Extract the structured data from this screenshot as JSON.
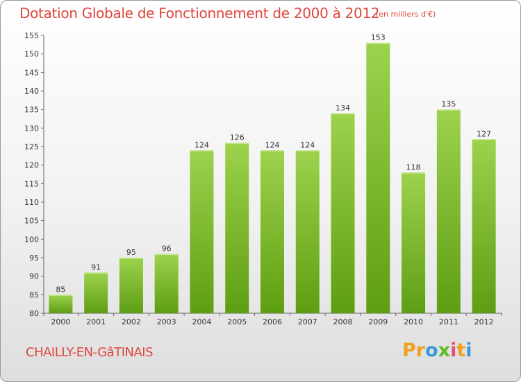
{
  "header": {
    "title": "Dotation Globale de Fonctionnement de 2000 à 2012",
    "unit": "(en milliers d'€)"
  },
  "footer": {
    "commune": "CHAILLY-EN-GâTINAIS",
    "logo_letters": [
      "P",
      "r",
      "o",
      "x",
      "i",
      "t",
      "i"
    ],
    "logo_colors": [
      "#f0a020",
      "#f0a020",
      "#3a9ad9",
      "#5aba2a",
      "#e84c6f",
      "#f0a020",
      "#3a9ad9"
    ]
  },
  "chart_data": {
    "type": "bar",
    "title": "Dotation Globale de Fonctionnement de 2000 à 2012",
    "subtitle": "(en milliers d'€)",
    "xlabel": "",
    "ylabel": "",
    "categories": [
      "2000",
      "2001",
      "2002",
      "2003",
      "2004",
      "2005",
      "2006",
      "2007",
      "2008",
      "2009",
      "2010",
      "2011",
      "2012"
    ],
    "values": [
      85,
      91,
      95,
      96,
      124,
      126,
      124,
      124,
      134,
      153,
      118,
      135,
      127
    ],
    "ylim": [
      80,
      155
    ],
    "yticks": [
      80,
      85,
      90,
      95,
      100,
      105,
      110,
      115,
      120,
      125,
      130,
      135,
      140,
      145,
      150,
      155
    ],
    "grid": false,
    "colors": {
      "bar_top": "#9dd24d",
      "bar_bottom": "#5e9e12",
      "axis": "#666666"
    }
  }
}
